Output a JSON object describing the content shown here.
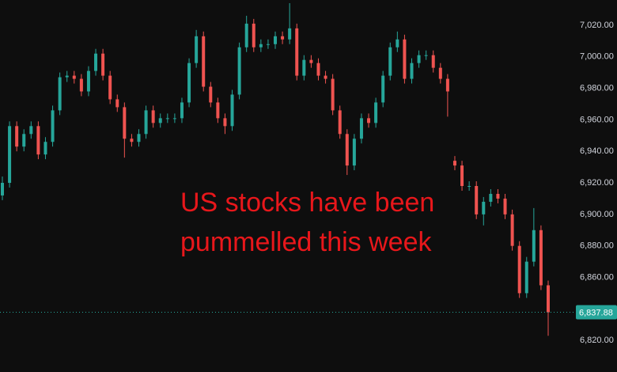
{
  "chart_data": {
    "type": "candlestick",
    "annotation": [
      "US stocks have been",
      "pummelled this week"
    ],
    "annotation_color": "#e8171b",
    "up_color": "#26a69a",
    "down_color": "#ef5350",
    "open": [
      6912,
      6920,
      6956,
      6943,
      6951,
      6956,
      6938,
      6946,
      6966,
      6987,
      6988,
      6986,
      6978,
      6991,
      7002,
      6988,
      6973,
      6968,
      6948,
      6946,
      6951,
      6966,
      6958,
      6961,
      6961,
      6961,
      6971,
      6996,
      7013,
      6981,
      6971,
      6961,
      6956,
      6976,
      7006,
      7021,
      7006,
      7008,
      7008,
      7013,
      7011,
      7018,
      6988,
      6998,
      6996,
      6988,
      6986,
      6966,
      6951,
      6931,
      6948,
      6961,
      6958,
      6971,
      6988,
      7006,
      7011,
      6986,
      6996,
      7001,
      7001,
      6993,
      6986,
      6934,
      6931,
      6918,
      6918,
      6900,
      6908,
      6913,
      6910,
      6900,
      6880,
      6850,
      6870,
      6890,
      6855
    ],
    "high": [
      6924,
      6959,
      6959,
      6954,
      6959,
      6959,
      6949,
      6969,
      6990,
      6991,
      6991,
      6989,
      6994,
      7005,
      7005,
      6991,
      6976,
      6971,
      6951,
      6954,
      6969,
      6969,
      6964,
      6964,
      6964,
      6974,
      6999,
      7017,
      7016,
      6984,
      6974,
      6964,
      6979,
      7009,
      7026,
      7024,
      7011,
      7011,
      7016,
      7016,
      7034,
      7021,
      7001,
      7001,
      6999,
      6991,
      6989,
      6969,
      6954,
      6951,
      6964,
      6964,
      6974,
      6991,
      7009,
      7016,
      7014,
      6999,
      7004,
      7004,
      7004,
      6996,
      6989,
      6937,
      6934,
      6921,
      6921,
      6911,
      6916,
      6916,
      6913,
      6903,
      6883,
      6873,
      6904,
      6893,
      6858
    ],
    "low": [
      6909,
      6917,
      6940,
      6940,
      6948,
      6935,
      6935,
      6943,
      6963,
      6984,
      6983,
      6975,
      6975,
      6988,
      6985,
      6970,
      6965,
      6936,
      6943,
      6943,
      6948,
      6955,
      6955,
      6958,
      6958,
      6958,
      6968,
      6993,
      6978,
      6968,
      6958,
      6951,
      6953,
      6973,
      7003,
      7003,
      7003,
      7005,
      7005,
      7008,
      7008,
      6985,
      6985,
      6993,
      6985,
      6983,
      6963,
      6948,
      6925,
      6928,
      6945,
      6955,
      6955,
      6968,
      6985,
      7003,
      6983,
      6983,
      6993,
      6998,
      6990,
      6983,
      6962,
      6928,
      6915,
      6915,
      6897,
      6893,
      6905,
      6907,
      6897,
      6877,
      6847,
      6847,
      6867,
      6852,
      6823
    ],
    "close": [
      6920,
      6956,
      6943,
      6951,
      6956,
      6938,
      6946,
      6966,
      6987,
      6988,
      6986,
      6978,
      6991,
      7002,
      6988,
      6973,
      6968,
      6948,
      6946,
      6951,
      6966,
      6958,
      6961,
      6961,
      6961,
      6971,
      6996,
      7013,
      6981,
      6971,
      6961,
      6956,
      6976,
      7006,
      7021,
      7006,
      7008,
      7008,
      7013,
      7011,
      7018,
      6988,
      6998,
      6996,
      6988,
      6986,
      6966,
      6951,
      6931,
      6948,
      6961,
      6958,
      6971,
      6988,
      7006,
      7011,
      6986,
      6996,
      7001,
      7001,
      6993,
      6986,
      6978,
      6931,
      6918,
      6918,
      6900,
      6908,
      6913,
      6910,
      6900,
      6880,
      6850,
      6870,
      6890,
      6855,
      6837.88
    ],
    "ylim": [
      6800,
      7036
    ],
    "yticks": [
      {
        "value": 6820,
        "label": "6,820.00"
      },
      {
        "value": 6840,
        "label": "6,840.00"
      },
      {
        "value": 6860,
        "label": "6,860.00"
      },
      {
        "value": 6880,
        "label": "6,880.00"
      },
      {
        "value": 6900,
        "label": "6,900.00"
      },
      {
        "value": 6920,
        "label": "6,920.00"
      },
      {
        "value": 6940,
        "label": "6,940.00"
      },
      {
        "value": 6960,
        "label": "6,960.00"
      },
      {
        "value": 6980,
        "label": "6,980.00"
      },
      {
        "value": 7000,
        "label": "7,000.00"
      },
      {
        "value": 7020,
        "label": "7,020.00"
      }
    ],
    "last_price": {
      "value": 6837.88,
      "label": "6,837.88"
    },
    "grid": false
  }
}
